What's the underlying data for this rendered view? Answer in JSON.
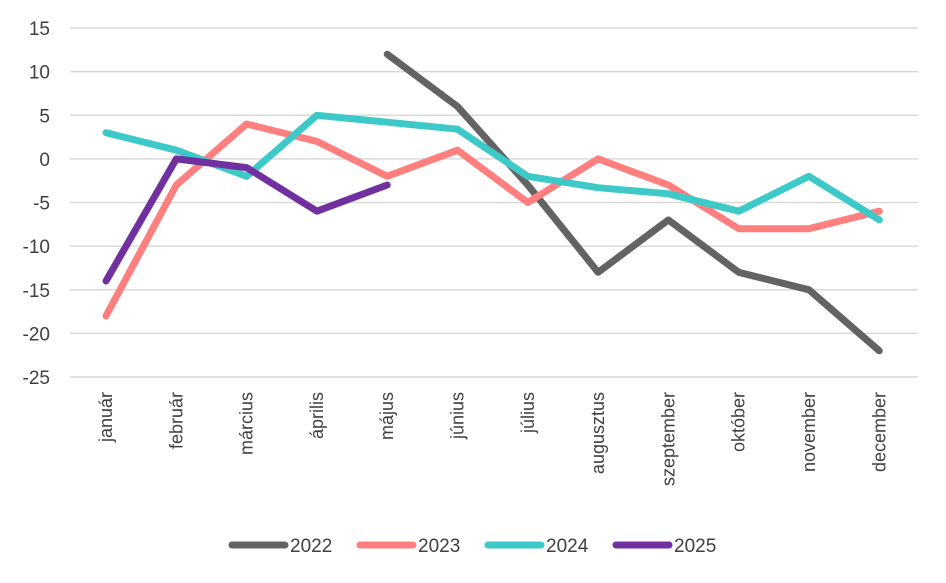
{
  "chart_data": {
    "type": "line",
    "categories": [
      "január",
      "február",
      "március",
      "április",
      "május",
      "június",
      "július",
      "augusztus",
      "szeptember",
      "október",
      "november",
      "december"
    ],
    "ylim": [
      -25,
      15
    ],
    "yticks": [
      15,
      10,
      5,
      0,
      -5,
      -10,
      -15,
      -20,
      -25
    ],
    "grid": true,
    "legend_position": "bottom",
    "series": [
      {
        "name": "2022",
        "color": "#636363",
        "values": [
          null,
          null,
          null,
          null,
          12,
          6,
          -3,
          -13,
          -7,
          -13,
          -15,
          -22
        ]
      },
      {
        "name": "2023",
        "color": "#ff7f7f",
        "values": [
          -18,
          -3,
          4,
          2,
          -2,
          1,
          -5,
          0,
          -3,
          -8,
          -8,
          -6
        ]
      },
      {
        "name": "2024",
        "color": "#3ec9c9",
        "values": [
          3,
          1,
          -2,
          5,
          4.2,
          3.4,
          -2,
          -3.3,
          -4,
          -6,
          -2,
          -7
        ]
      },
      {
        "name": "2025",
        "color": "#7030a0",
        "values": [
          -14,
          0,
          -1,
          -6,
          -3,
          null,
          null,
          null,
          null,
          null,
          null,
          null
        ]
      }
    ]
  }
}
